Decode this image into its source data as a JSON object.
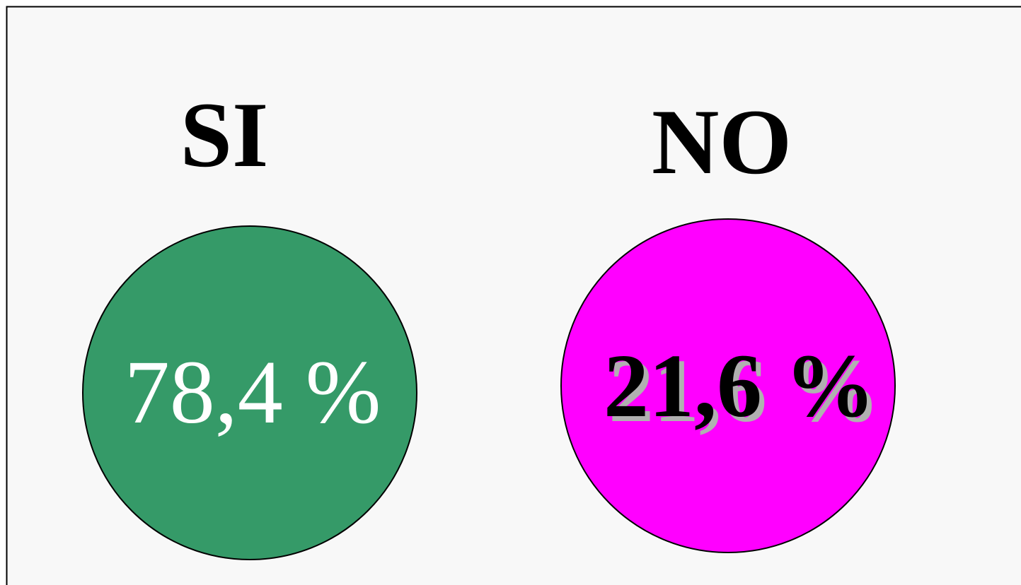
{
  "items": [
    {
      "label": "SI",
      "value": "78,4 %"
    },
    {
      "label": "NO",
      "value": "21,6 %"
    }
  ]
}
